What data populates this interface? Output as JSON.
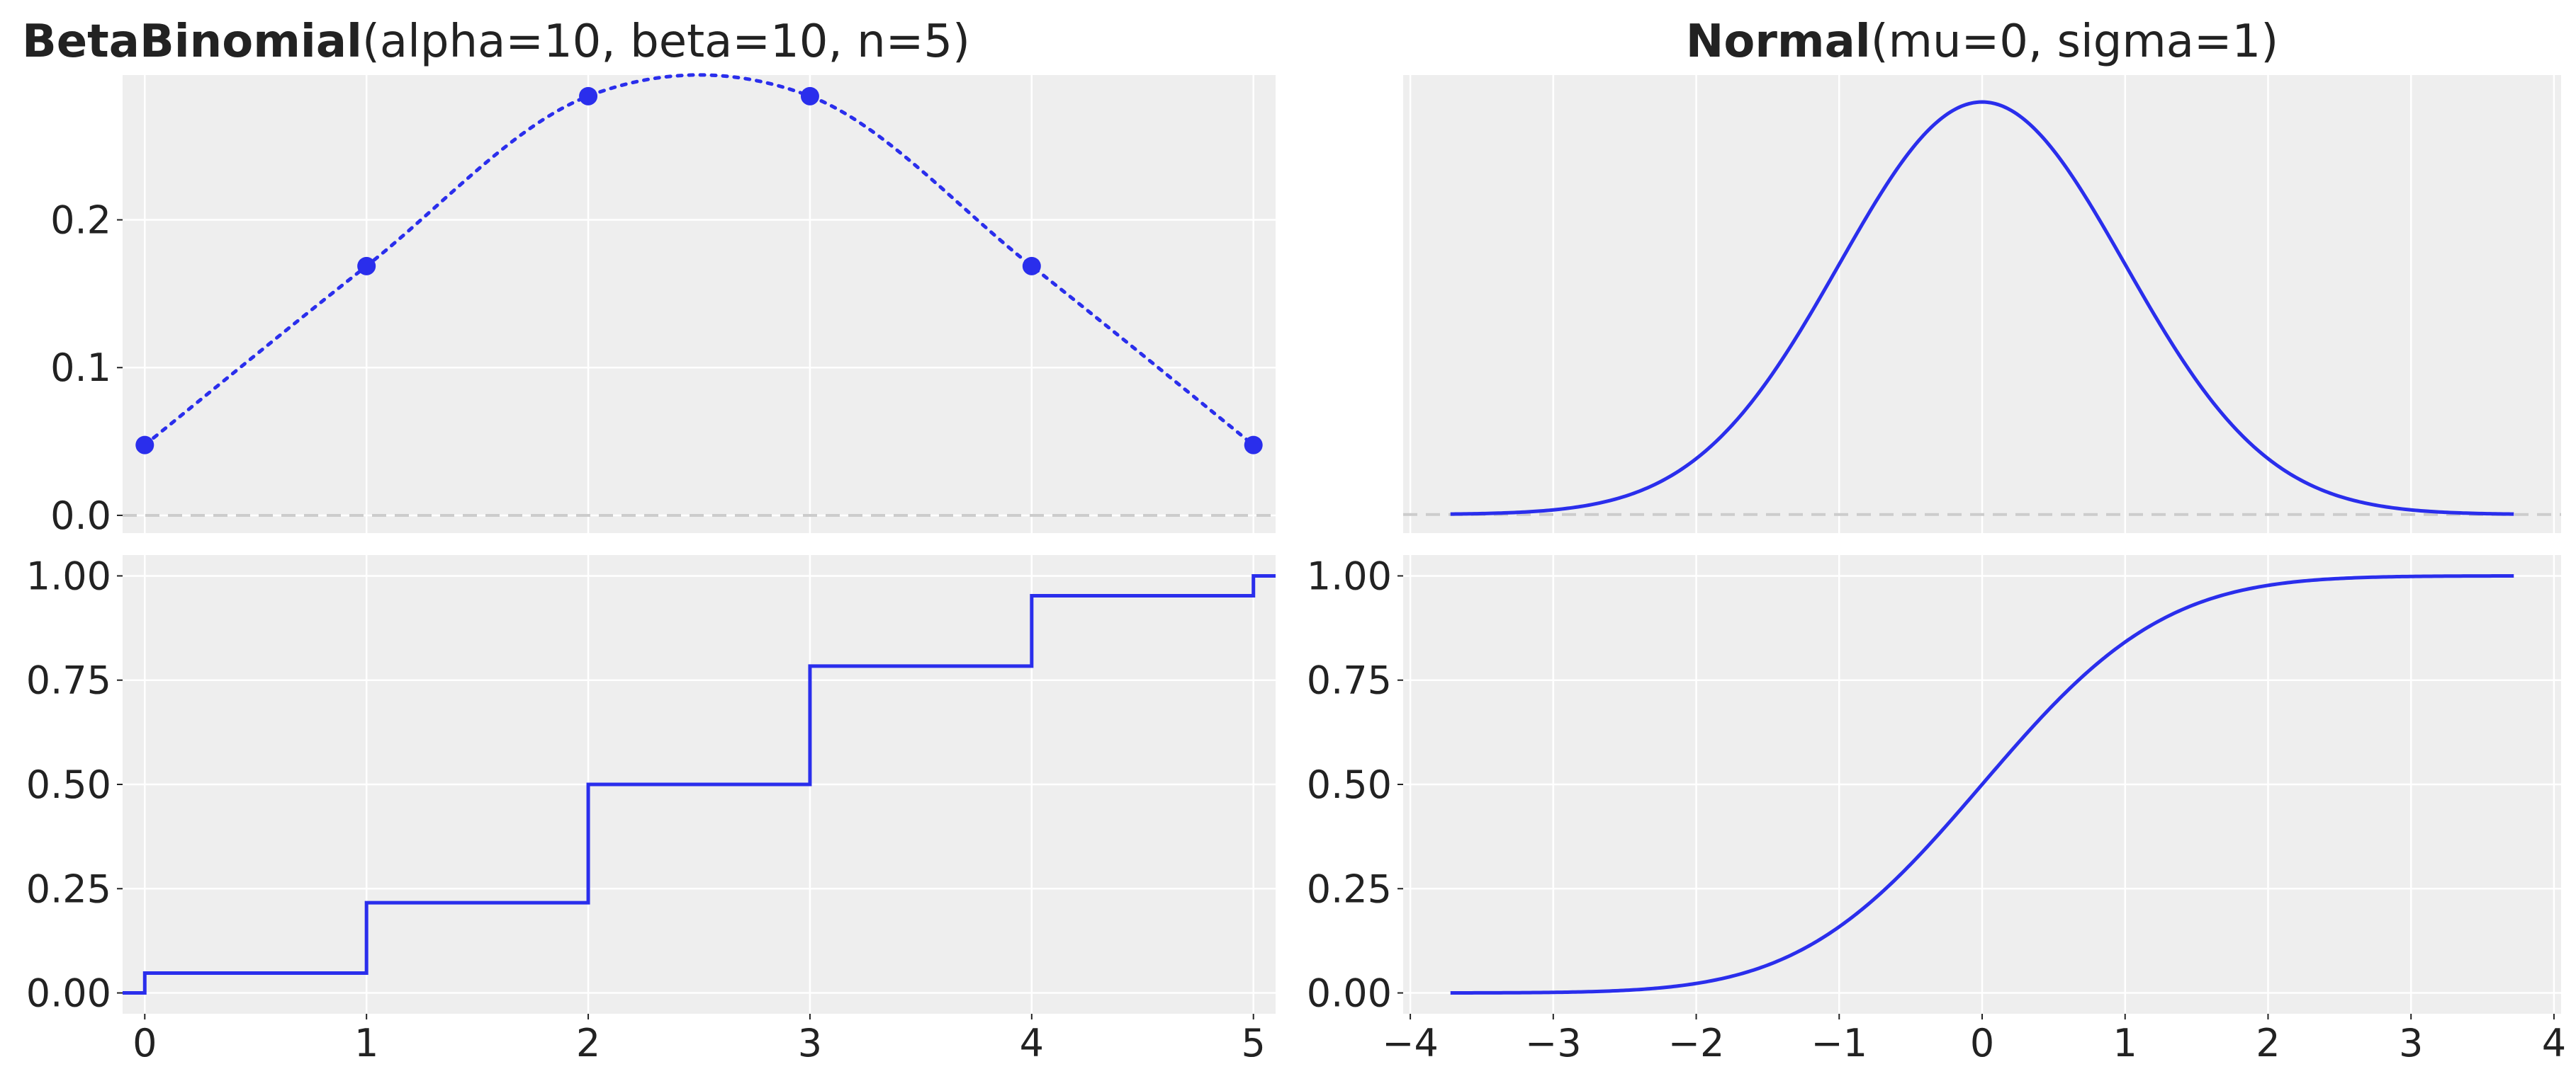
{
  "chart_data": [
    {
      "panel": "top-left",
      "type": "line",
      "title_bold": "BetaBinomial",
      "title_rest": "(alpha=10, beta=10, n=5)",
      "x": [
        0,
        1,
        2,
        3,
        4,
        5
      ],
      "y": [
        0.0476,
        0.1687,
        0.2837,
        0.2837,
        0.1687,
        0.0476
      ],
      "xlim": [
        -0.1,
        5.1
      ],
      "ylim": [
        -0.012,
        0.298
      ],
      "xticks": [
        0,
        1,
        2,
        3,
        4,
        5
      ],
      "yticks": [
        0.0,
        0.1,
        0.2
      ],
      "ytick_labels": [
        "0.0",
        "0.1",
        "0.2"
      ],
      "show_xtick_labels": false,
      "markers": true,
      "line_style": "dotted",
      "reference_line_y": 0,
      "grid": true
    },
    {
      "panel": "top-right",
      "type": "line",
      "title_bold": "Normal",
      "title_rest": "(mu=0, sigma=1)",
      "distribution": "normal-pdf",
      "mu": 0,
      "sigma": 1,
      "x_range": [
        -3.719,
        3.719
      ],
      "xlim": [
        -4.05,
        4.05
      ],
      "ylim": [
        -0.018,
        0.425
      ],
      "xticks": [
        -4,
        -3,
        -2,
        -1,
        0,
        1,
        2,
        3,
        4
      ],
      "show_xtick_labels": false,
      "show_ytick_labels": false,
      "reference_line_y": 0,
      "grid": true
    },
    {
      "panel": "bottom-left",
      "type": "line",
      "step": true,
      "x": [
        0,
        1,
        2,
        3,
        4,
        5
      ],
      "cdf": [
        0.0476,
        0.2163,
        0.5,
        0.7837,
        0.9524,
        1.0
      ],
      "step_start": [
        -0.1,
        0
      ],
      "step_end": 5.1,
      "xlim": [
        -0.1,
        5.1
      ],
      "ylim": [
        -0.05,
        1.05
      ],
      "xticks": [
        0,
        1,
        2,
        3,
        4,
        5
      ],
      "xtick_labels": [
        "0",
        "1",
        "2",
        "3",
        "4",
        "5"
      ],
      "yticks": [
        0,
        0.25,
        0.5,
        0.75,
        1.0
      ],
      "ytick_labels": [
        "0.00",
        "0.25",
        "0.50",
        "0.75",
        "1.00"
      ],
      "grid": true
    },
    {
      "panel": "bottom-right",
      "type": "line",
      "distribution": "normal-cdf",
      "mu": 0,
      "sigma": 1,
      "x_range": [
        -3.719,
        3.719
      ],
      "xlim": [
        -4.05,
        4.05
      ],
      "ylim": [
        -0.05,
        1.05
      ],
      "xticks": [
        -4,
        -3,
        -2,
        -1,
        0,
        1,
        2,
        3,
        4
      ],
      "xtick_labels": [
        "−4",
        "−3",
        "−2",
        "−1",
        "0",
        "1",
        "2",
        "3",
        "4"
      ],
      "yticks": [
        0,
        0.25,
        0.5,
        0.75,
        1.0
      ],
      "ytick_labels": [
        "0.00",
        "0.25",
        "0.50",
        "0.75",
        "1.00"
      ],
      "grid": true
    }
  ],
  "colors": {
    "series": "#2a2eec",
    "panel_background": "#eeeeee",
    "grid": "#ffffff",
    "reference_line": "#cccccc",
    "text": "#222222"
  }
}
